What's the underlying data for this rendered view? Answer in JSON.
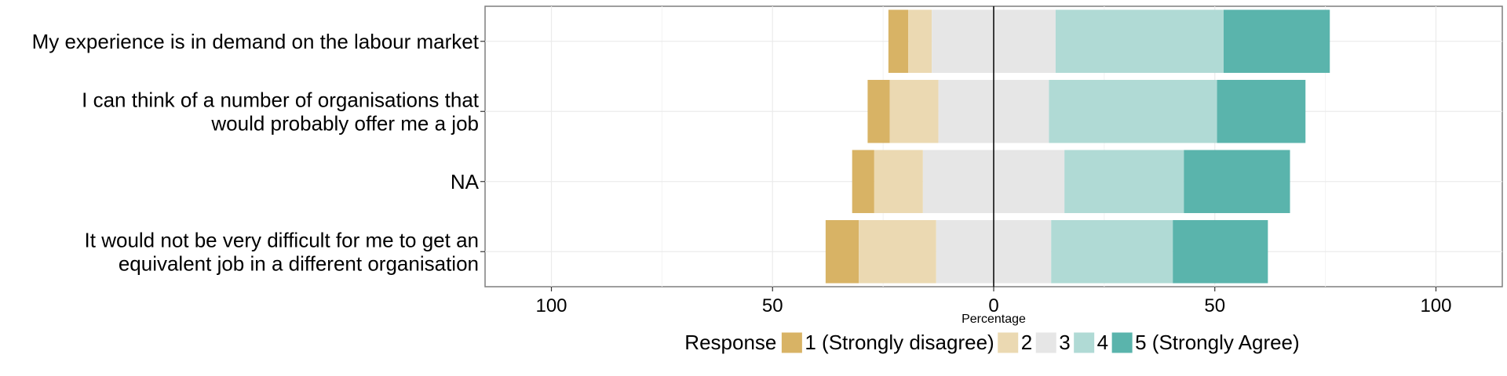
{
  "chart_data": {
    "type": "bar",
    "orientation": "horizontal",
    "stacking": "diverging",
    "xlabel": "Percentage",
    "xlim": [
      -115,
      115
    ],
    "xticks": [
      -100,
      -50,
      0,
      50,
      100
    ],
    "xtick_labels": [
      "100",
      "50",
      "0",
      "50",
      "100"
    ],
    "grid": true,
    "legend_position": "bottom",
    "legend_title": "Response",
    "categories": [
      {
        "label": [
          "My experience is in demand on the labour market"
        ]
      },
      {
        "label": [
          "I can think of a number of organisations that",
          "would probably offer me a job"
        ]
      },
      {
        "label": [
          "NA"
        ]
      },
      {
        "label": [
          "It would not be very difficult for me to get an",
          "equivalent job in a different organisation"
        ]
      }
    ],
    "series": [
      {
        "name": "1 (Strongly disagree)",
        "color": "#D8B365",
        "values": [
          4.5,
          5.0,
          5.0,
          7.5
        ]
      },
      {
        "name": "2",
        "color": "#EBD9B2",
        "values": [
          5.3,
          11.0,
          11.0,
          17.5
        ]
      },
      {
        "name": "3",
        "color": "#E6E6E6",
        "values": [
          28.0,
          25.0,
          32.0,
          26.0
        ]
      },
      {
        "name": "4",
        "color": "#B0DAD5",
        "values": [
          38.0,
          38.0,
          27.0,
          27.5
        ]
      },
      {
        "name": "5 (Strongly Agree)",
        "color": "#5AB4AC",
        "values": [
          24.0,
          20.0,
          24.0,
          21.5
        ]
      }
    ]
  }
}
